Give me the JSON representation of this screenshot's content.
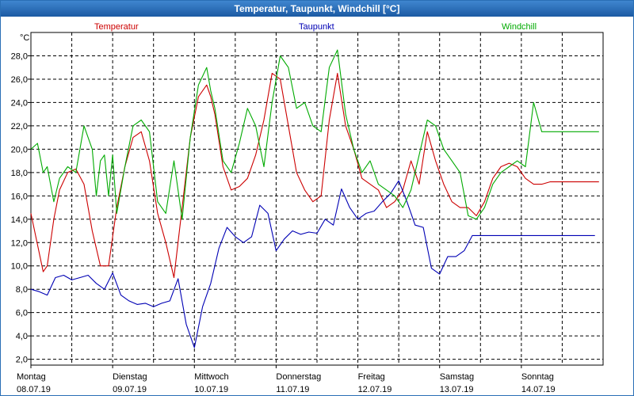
{
  "window": {
    "title": "Temperatur, Taupunkt, Windchill [°C]"
  },
  "chart_data": {
    "type": "line",
    "title": "Temperatur, Taupunkt, Windchill [°C]",
    "ylabel": "°C",
    "ylim": [
      1.5,
      30.0
    ],
    "xlim": [
      0,
      7
    ],
    "yticks": [
      2,
      4,
      6,
      8,
      10,
      12,
      14,
      16,
      18,
      20,
      22,
      24,
      26,
      28
    ],
    "ytick_labels": [
      "2,0",
      "4,0",
      "6,0",
      "8,0",
      "10,0",
      "12,0",
      "14,0",
      "16,0",
      "18,0",
      "20,0",
      "22,0",
      "24,0",
      "26,0",
      "28,0"
    ],
    "days": [
      {
        "name": "Montag",
        "date": "08.07.19"
      },
      {
        "name": "Dienstag",
        "date": "09.07.19"
      },
      {
        "name": "Mittwoch",
        "date": "10.07.19"
      },
      {
        "name": "Donnerstag",
        "date": "11.07.19"
      },
      {
        "name": "Freitag",
        "date": "12.07.19"
      },
      {
        "name": "Samstag",
        "date": "13.07.19"
      },
      {
        "name": "Sonntag",
        "date": "14.07.19"
      }
    ],
    "grid": true,
    "series": [
      {
        "name": "Temperatur",
        "color": "#cc0000",
        "x": [
          0.0,
          0.09,
          0.15,
          0.2,
          0.28,
          0.35,
          0.45,
          0.55,
          0.65,
          0.75,
          0.85,
          0.95,
          1.05,
          1.15,
          1.25,
          1.35,
          1.45,
          1.55,
          1.65,
          1.75,
          1.85,
          1.95,
          2.05,
          2.15,
          2.2,
          2.25,
          2.35,
          2.45,
          2.55,
          2.65,
          2.75,
          2.85,
          2.95,
          3.05,
          3.15,
          3.25,
          3.35,
          3.45,
          3.55,
          3.65,
          3.75,
          3.85,
          3.95,
          4.05,
          4.15,
          4.25,
          4.35,
          4.45,
          4.55,
          4.65,
          4.75,
          4.85,
          4.95,
          5.05,
          5.15,
          5.25,
          5.35,
          5.45,
          5.55,
          5.65,
          5.75,
          5.85,
          5.95,
          6.05,
          6.15,
          6.25,
          6.35,
          6.45,
          6.55,
          6.65,
          6.75,
          6.85,
          6.95,
          7.0
        ],
        "y": [
          14.5,
          11.5,
          9.5,
          10.0,
          14.0,
          16.5,
          18.0,
          18.3,
          17.0,
          13.0,
          10.0,
          10.0,
          15.0,
          18.5,
          21.0,
          21.5,
          19.0,
          14.5,
          12.0,
          9.0,
          15.0,
          21.0,
          24.5,
          25.5,
          24.5,
          23.0,
          18.5,
          16.5,
          16.8,
          17.5,
          19.5,
          22.5,
          26.5,
          26.0,
          22.0,
          18.0,
          16.5,
          15.5,
          16.0,
          22.5,
          26.5,
          22.0,
          20.0,
          17.5,
          17.0,
          16.5,
          15.0,
          15.5,
          16.5,
          19.0,
          17.0,
          21.5,
          19.0,
          17.0,
          15.5,
          15.0,
          15.0,
          14.3,
          15.5,
          17.5,
          18.5,
          18.8,
          18.5,
          17.5,
          17.0,
          17.0,
          17.2,
          17.2,
          17.2,
          17.2,
          17.2,
          17.2,
          17.2,
          17.2
        ]
      },
      {
        "name": "Taupunkt",
        "color": "#0000b4",
        "x": [
          0.0,
          0.1,
          0.2,
          0.3,
          0.4,
          0.5,
          0.6,
          0.7,
          0.8,
          0.9,
          1.0,
          1.1,
          1.2,
          1.3,
          1.4,
          1.5,
          1.6,
          1.7,
          1.8,
          1.9,
          2.0,
          2.1,
          2.2,
          2.3,
          2.4,
          2.5,
          2.6,
          2.7,
          2.8,
          2.9,
          3.0,
          3.1,
          3.2,
          3.3,
          3.4,
          3.5,
          3.6,
          3.7,
          3.8,
          3.9,
          4.0,
          4.1,
          4.2,
          4.3,
          4.4,
          4.5,
          4.6,
          4.7,
          4.8,
          4.9,
          5.0,
          5.1,
          5.2,
          5.3,
          5.4,
          5.5,
          5.6,
          5.7,
          5.8,
          5.9,
          6.0,
          6.1,
          6.2,
          6.3,
          6.4,
          6.5,
          6.6,
          6.7,
          6.8,
          6.9,
          7.0
        ],
        "y": [
          8.0,
          7.8,
          7.5,
          9.0,
          9.2,
          8.8,
          9.0,
          9.2,
          8.5,
          8.0,
          9.4,
          7.5,
          7.0,
          6.7,
          6.8,
          6.5,
          6.8,
          7.0,
          8.9,
          5.0,
          3.0,
          6.5,
          8.5,
          11.5,
          13.3,
          12.5,
          12.0,
          12.5,
          15.2,
          14.5,
          11.3,
          12.3,
          13.0,
          12.7,
          12.9,
          12.8,
          14.0,
          13.5,
          16.6,
          15.0,
          14.0,
          14.5,
          14.7,
          15.5,
          16.2,
          17.3,
          15.5,
          13.5,
          13.3,
          9.8,
          9.3,
          10.8,
          10.8,
          11.3,
          12.6,
          12.6,
          12.6,
          12.6,
          12.6,
          12.6,
          12.6,
          12.6,
          12.6,
          12.6,
          12.6,
          12.6,
          12.6,
          12.6,
          12.6,
          12.6,
          12.6
        ]
      },
      {
        "name": "Windchill",
        "color": "#00aa00",
        "x": [
          0.0,
          0.08,
          0.15,
          0.2,
          0.28,
          0.35,
          0.45,
          0.55,
          0.65,
          0.75,
          0.8,
          0.85,
          0.9,
          0.95,
          1.0,
          1.05,
          1.15,
          1.25,
          1.35,
          1.45,
          1.55,
          1.65,
          1.75,
          1.85,
          1.95,
          2.05,
          2.15,
          2.2,
          2.25,
          2.35,
          2.45,
          2.55,
          2.65,
          2.75,
          2.85,
          2.95,
          3.05,
          3.15,
          3.25,
          3.35,
          3.45,
          3.55,
          3.65,
          3.75,
          3.85,
          3.95,
          4.05,
          4.15,
          4.25,
          4.35,
          4.45,
          4.55,
          4.65,
          4.75,
          4.85,
          4.95,
          5.05,
          5.15,
          5.25,
          5.35,
          5.45,
          5.55,
          5.65,
          5.75,
          5.85,
          5.95,
          6.05,
          6.15,
          6.25,
          6.35,
          6.45,
          6.55,
          6.65,
          6.75,
          6.85,
          6.95,
          7.0
        ],
        "y": [
          20.0,
          20.5,
          18.0,
          18.5,
          15.5,
          17.5,
          18.5,
          18.0,
          22.0,
          20.0,
          16.0,
          19.0,
          19.5,
          16.0,
          19.5,
          14.5,
          18.5,
          22.0,
          22.5,
          21.5,
          15.5,
          14.5,
          19.0,
          14.0,
          21.0,
          25.5,
          27.0,
          25.0,
          23.5,
          19.0,
          18.0,
          20.5,
          23.5,
          22.0,
          18.5,
          24.0,
          28.0,
          27.0,
          23.5,
          24.0,
          22.0,
          21.5,
          27.0,
          28.5,
          23.0,
          20.0,
          18.0,
          19.0,
          17.0,
          16.5,
          16.0,
          15.0,
          16.5,
          19.5,
          22.5,
          22.0,
          20.0,
          19.0,
          18.0,
          14.3,
          14.0,
          15.0,
          17.0,
          18.0,
          18.5,
          19.0,
          18.5,
          24.0,
          21.5,
          21.5,
          21.5,
          21.5,
          21.5,
          21.5,
          21.5,
          21.5,
          21.5
        ]
      }
    ]
  }
}
